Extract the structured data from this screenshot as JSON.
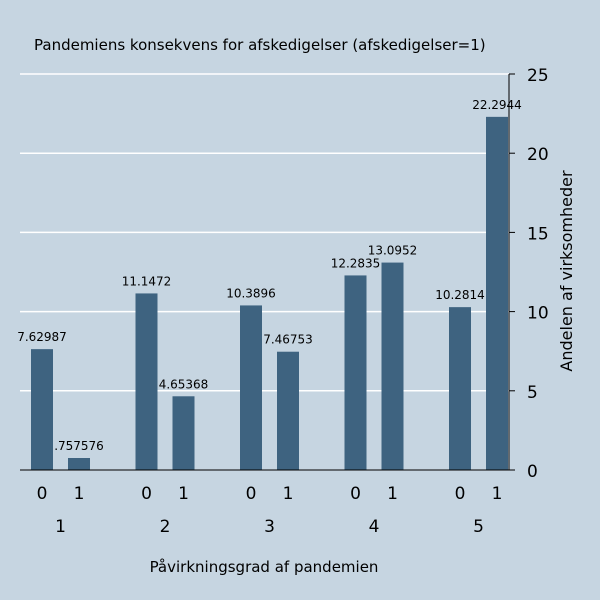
{
  "chart_data": {
    "type": "bar",
    "title": "Pandemiens konsekvens for afskedigelser (afskedigelser=1)",
    "xlabel": "Påvirkningsgrad af pandemien",
    "ylabel": "Andelen af virksomheder",
    "ylim": [
      0,
      25
    ],
    "yticks": [
      "0",
      "5",
      "10",
      "15",
      "20",
      "25"
    ],
    "grid": true,
    "groups": [
      {
        "label": "1",
        "bars": [
          {
            "x": "0",
            "value": 7.62987,
            "data_label": "7.62987"
          },
          {
            "x": "1",
            "value": 0.757576,
            "data_label": ".757576"
          }
        ]
      },
      {
        "label": "2",
        "bars": [
          {
            "x": "0",
            "value": 11.1472,
            "data_label": "11.1472"
          },
          {
            "x": "1",
            "value": 4.65368,
            "data_label": "4.65368"
          }
        ]
      },
      {
        "label": "3",
        "bars": [
          {
            "x": "0",
            "value": 10.3896,
            "data_label": "10.3896"
          },
          {
            "x": "1",
            "value": 7.46753,
            "data_label": "7.46753"
          }
        ]
      },
      {
        "label": "4",
        "bars": [
          {
            "x": "0",
            "value": 12.2835,
            "data_label": "12.2835"
          },
          {
            "x": "1",
            "value": 13.0952,
            "data_label": "13.0952"
          }
        ]
      },
      {
        "label": "5",
        "bars": [
          {
            "x": "0",
            "value": 10.2814,
            "data_label": "10.2814"
          },
          {
            "x": "1",
            "value": 22.2944,
            "data_label": "22.2944"
          }
        ]
      }
    ],
    "colors": {
      "background": "#c6d5e1",
      "bar": "#3e6380",
      "grid": "#ffffff",
      "axis": "#000000"
    }
  }
}
